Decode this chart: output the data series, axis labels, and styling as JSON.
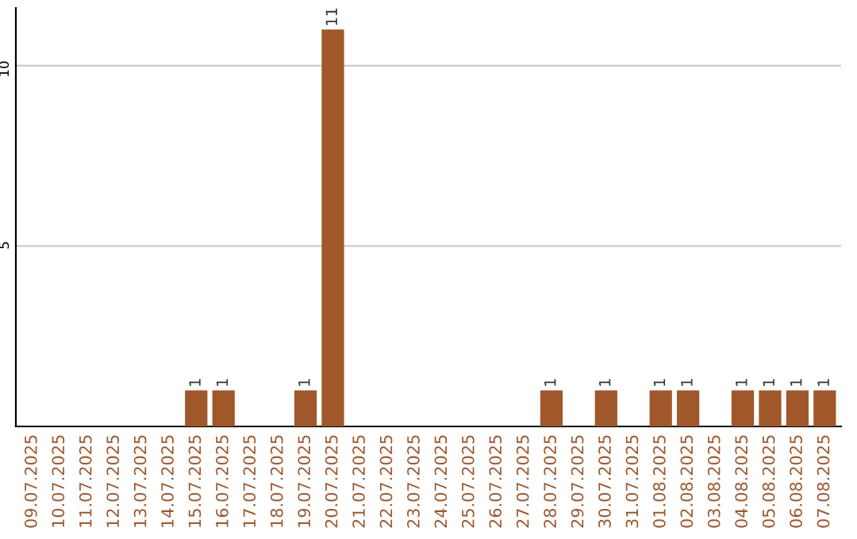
{
  "chart_data": {
    "type": "bar",
    "categories": [
      "09.07.2025",
      "10.07.2025",
      "11.07.2025",
      "12.07.2025",
      "13.07.2025",
      "14.07.2025",
      "15.07.2025",
      "16.07.2025",
      "17.07.2025",
      "18.07.2025",
      "19.07.2025",
      "20.07.2025",
      "21.07.2025",
      "22.07.2025",
      "23.07.2025",
      "24.07.2025",
      "25.07.2025",
      "26.07.2025",
      "27.07.2025",
      "28.07.2025",
      "29.07.2025",
      "30.07.2025",
      "31.07.2025",
      "01.08.2025",
      "02.08.2025",
      "03.08.2025",
      "04.08.2025",
      "05.08.2025",
      "06.08.2025",
      "07.08.2025"
    ],
    "values": [
      0,
      0,
      0,
      0,
      0,
      0,
      1,
      1,
      0,
      0,
      1,
      11,
      0,
      0,
      0,
      0,
      0,
      0,
      0,
      1,
      0,
      1,
      0,
      1,
      1,
      0,
      1,
      1,
      1,
      1
    ],
    "value_labels": [
      null,
      null,
      null,
      null,
      null,
      null,
      "1",
      "1",
      null,
      null,
      "1",
      "11",
      null,
      null,
      null,
      null,
      null,
      null,
      null,
      "1",
      null,
      "1",
      null,
      "1",
      "1",
      null,
      "1",
      "1",
      "1",
      "1"
    ],
    "color": "#a0572a",
    "ylim": [
      0,
      11.6
    ],
    "yticks": [
      5,
      10
    ],
    "grid": "y",
    "legend": false
  }
}
